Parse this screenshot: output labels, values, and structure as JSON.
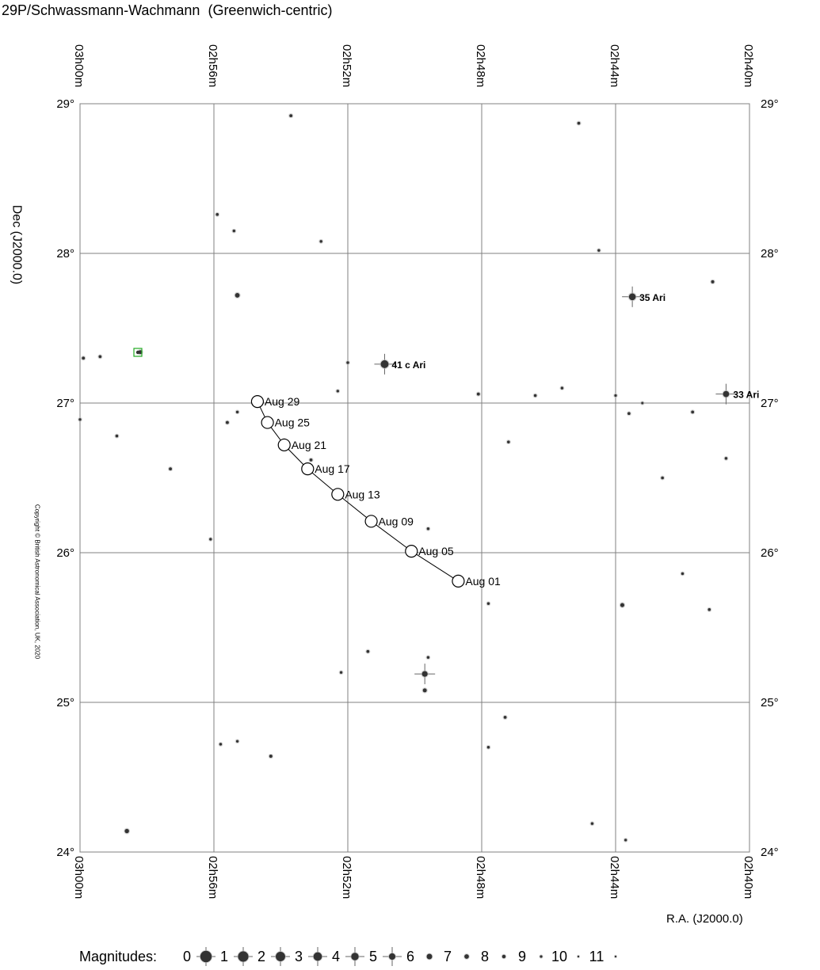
{
  "title": "29P/Schwassmann-Wachmann  (Greenwich-centric)",
  "ra_axis_label": "R.A. (J2000.0)",
  "dec_axis_label": "Dec (J2000.0)",
  "copyright": "Copyright © British Astronomical Association, UK, 2020",
  "ra_ticks": [
    "03h00m",
    "02h56m",
    "02h52m",
    "02h48m",
    "02h44m",
    "02h40m"
  ],
  "dec_ticks": [
    "29°",
    "28°",
    "27°",
    "26°",
    "25°",
    "24°"
  ],
  "magnitudes_label": "Magnitudes:",
  "magnitudes": [
    "0",
    "1",
    "2",
    "3",
    "4",
    "5",
    "6",
    "7",
    "8",
    "9",
    "10",
    "11"
  ],
  "comet_track": {
    "points": [
      {
        "label": "Aug 01",
        "ra_min": 168.7,
        "dec": 25.81
      },
      {
        "label": "Aug 05",
        "ra_min": 170.1,
        "dec": 26.01
      },
      {
        "label": "Aug 09",
        "ra_min": 171.3,
        "dec": 26.21
      },
      {
        "label": "Aug 13",
        "ra_min": 172.3,
        "dec": 26.39
      },
      {
        "label": "Aug 17",
        "ra_min": 173.2,
        "dec": 26.56
      },
      {
        "label": "Aug 21",
        "ra_min": 173.9,
        "dec": 26.72
      },
      {
        "label": "Aug 25",
        "ra_min": 174.4,
        "dec": 26.87
      },
      {
        "label": "Aug 29",
        "ra_min": 174.7,
        "dec": 27.01
      }
    ]
  },
  "named_stars": [
    {
      "label": "41 c Ari",
      "ra_min": 170.9,
      "dec": 27.26,
      "mag": 3.6
    },
    {
      "label": "35 Ari",
      "ra_min": 163.5,
      "dec": 27.71,
      "mag": 4.6
    },
    {
      "label": "33 Ari",
      "ra_min": 160.7,
      "dec": 27.06,
      "mag": 5.3
    },
    {
      "label": "",
      "ra_min": 169.7,
      "dec": 25.19,
      "mag": 5.8
    }
  ],
  "stars": [
    {
      "ra_min": 173.7,
      "dec": 28.92,
      "mag": 8.5
    },
    {
      "ra_min": 165.1,
      "dec": 28.87,
      "mag": 8.6
    },
    {
      "ra_min": 175.9,
      "dec": 28.26,
      "mag": 8.7
    },
    {
      "ra_min": 175.4,
      "dec": 28.15,
      "mag": 8.8
    },
    {
      "ra_min": 172.8,
      "dec": 28.08,
      "mag": 8.8
    },
    {
      "ra_min": 164.5,
      "dec": 28.02,
      "mag": 8.9
    },
    {
      "ra_min": 161.1,
      "dec": 27.81,
      "mag": 8.4
    },
    {
      "ra_min": 175.3,
      "dec": 27.72,
      "mag": 6.9
    },
    {
      "ra_min": 178.2,
      "dec": 27.34,
      "mag": 7.5
    },
    {
      "ra_min": 179.9,
      "dec": 27.3,
      "mag": 8.5
    },
    {
      "ra_min": 179.4,
      "dec": 27.31,
      "mag": 8.6
    },
    {
      "ra_min": 172.0,
      "dec": 27.27,
      "mag": 8.8
    },
    {
      "ra_min": 172.3,
      "dec": 27.08,
      "mag": 8.9
    },
    {
      "ra_min": 168.1,
      "dec": 27.06,
      "mag": 8.5
    },
    {
      "ra_min": 166.4,
      "dec": 27.05,
      "mag": 8.7
    },
    {
      "ra_min": 165.6,
      "dec": 27.1,
      "mag": 8.8
    },
    {
      "ra_min": 164.0,
      "dec": 27.05,
      "mag": 9.0
    },
    {
      "ra_min": 163.2,
      "dec": 27.0,
      "mag": 9.1
    },
    {
      "ra_min": 163.6,
      "dec": 26.93,
      "mag": 8.7
    },
    {
      "ra_min": 161.7,
      "dec": 26.94,
      "mag": 8.6
    },
    {
      "ra_min": 180.0,
      "dec": 26.89,
      "mag": 8.9
    },
    {
      "ra_min": 175.3,
      "dec": 26.94,
      "mag": 8.8
    },
    {
      "ra_min": 175.6,
      "dec": 26.87,
      "mag": 8.5
    },
    {
      "ra_min": 178.9,
      "dec": 26.78,
      "mag": 8.7
    },
    {
      "ra_min": 173.9,
      "dec": 26.75,
      "mag": 8.8
    },
    {
      "ra_min": 167.2,
      "dec": 26.74,
      "mag": 8.7
    },
    {
      "ra_min": 173.1,
      "dec": 26.62,
      "mag": 8.6
    },
    {
      "ra_min": 160.7,
      "dec": 26.63,
      "mag": 8.8
    },
    {
      "ra_min": 177.3,
      "dec": 26.56,
      "mag": 8.5
    },
    {
      "ra_min": 162.6,
      "dec": 26.5,
      "mag": 8.7
    },
    {
      "ra_min": 169.6,
      "dec": 26.16,
      "mag": 8.8
    },
    {
      "ra_min": 176.1,
      "dec": 26.09,
      "mag": 8.9
    },
    {
      "ra_min": 162.0,
      "dec": 25.86,
      "mag": 8.8
    },
    {
      "ra_min": 167.8,
      "dec": 25.66,
      "mag": 8.8
    },
    {
      "ra_min": 163.8,
      "dec": 25.65,
      "mag": 7.5
    },
    {
      "ra_min": 161.2,
      "dec": 25.62,
      "mag": 8.7
    },
    {
      "ra_min": 171.4,
      "dec": 25.34,
      "mag": 8.6
    },
    {
      "ra_min": 169.6,
      "dec": 25.3,
      "mag": 8.8
    },
    {
      "ra_min": 172.2,
      "dec": 25.2,
      "mag": 8.9
    },
    {
      "ra_min": 169.7,
      "dec": 25.08,
      "mag": 7.6
    },
    {
      "ra_min": 167.3,
      "dec": 24.9,
      "mag": 8.6
    },
    {
      "ra_min": 175.8,
      "dec": 24.72,
      "mag": 8.8
    },
    {
      "ra_min": 175.3,
      "dec": 24.74,
      "mag": 8.9
    },
    {
      "ra_min": 174.3,
      "dec": 24.64,
      "mag": 8.4
    },
    {
      "ra_min": 167.8,
      "dec": 24.7,
      "mag": 8.8
    },
    {
      "ra_min": 178.6,
      "dec": 24.14,
      "mag": 7.2
    },
    {
      "ra_min": 164.7,
      "dec": 24.19,
      "mag": 8.8
    },
    {
      "ra_min": 163.7,
      "dec": 24.08,
      "mag": 8.9
    }
  ],
  "colors": {
    "grid": "#808080",
    "frame": "#808080",
    "star": "#333333",
    "track": "#000000",
    "marker": "#22aa22"
  }
}
